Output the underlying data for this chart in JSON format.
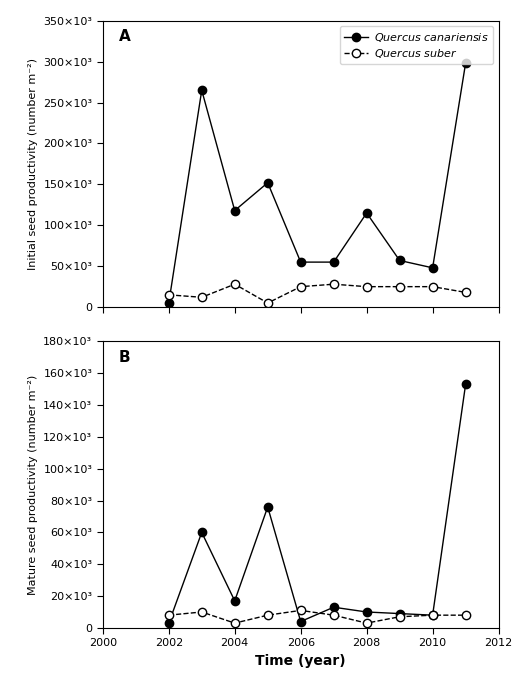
{
  "can_A_x": [
    2002,
    2003,
    2004,
    2005,
    2006,
    2007,
    2008,
    2009,
    2010,
    2011
  ],
  "can_A_y": [
    5000,
    265000,
    118000,
    152000,
    55000,
    55000,
    115000,
    57000,
    48000,
    298000
  ],
  "sub_A_x": [
    2002,
    2003,
    2004,
    2005,
    2006,
    2007,
    2008,
    2009,
    2010,
    2011
  ],
  "sub_A_y": [
    15000,
    12000,
    28000,
    5000,
    25000,
    28000,
    25000,
    25000,
    25000,
    18000
  ],
  "can_B_x": [
    2002,
    2003,
    2004,
    2005,
    2006,
    2007,
    2008,
    2009,
    2010,
    2011
  ],
  "can_B_y": [
    3000,
    60000,
    17000,
    76000,
    4000,
    13000,
    10000,
    9000,
    8000,
    153000
  ],
  "sub_B_x": [
    2002,
    2003,
    2004,
    2005,
    2006,
    2007,
    2008,
    2009,
    2010,
    2011
  ],
  "sub_B_y": [
    8000,
    10000,
    3000,
    8000,
    11000,
    8000,
    3000,
    7000,
    8000,
    8000
  ],
  "ylabel_A": "Initial seed productivity (number m⁻²)",
  "ylabel_B": "Mature seed productivity (number m⁻²)",
  "xlabel": "Time (year)",
  "label_canariensis": "Quercus canariensis",
  "label_suber": "Quercus suber",
  "panel_A": "A",
  "panel_B": "B",
  "xlim": [
    2000,
    2012
  ],
  "xticks": [
    2000,
    2002,
    2004,
    2006,
    2008,
    2010,
    2012
  ],
  "ylim_A": [
    0,
    350000
  ],
  "yticks_A": [
    0,
    50000,
    100000,
    150000,
    200000,
    250000,
    300000,
    350000
  ],
  "ylim_B": [
    0,
    180000
  ],
  "yticks_B": [
    0,
    20000,
    40000,
    60000,
    80000,
    100000,
    120000,
    140000,
    160000,
    180000
  ],
  "line_color": "#000000",
  "marker_size": 6,
  "line_width": 1.0,
  "tick_fontsize": 8,
  "label_fontsize": 8,
  "xlabel_fontsize": 10,
  "panel_fontsize": 11
}
